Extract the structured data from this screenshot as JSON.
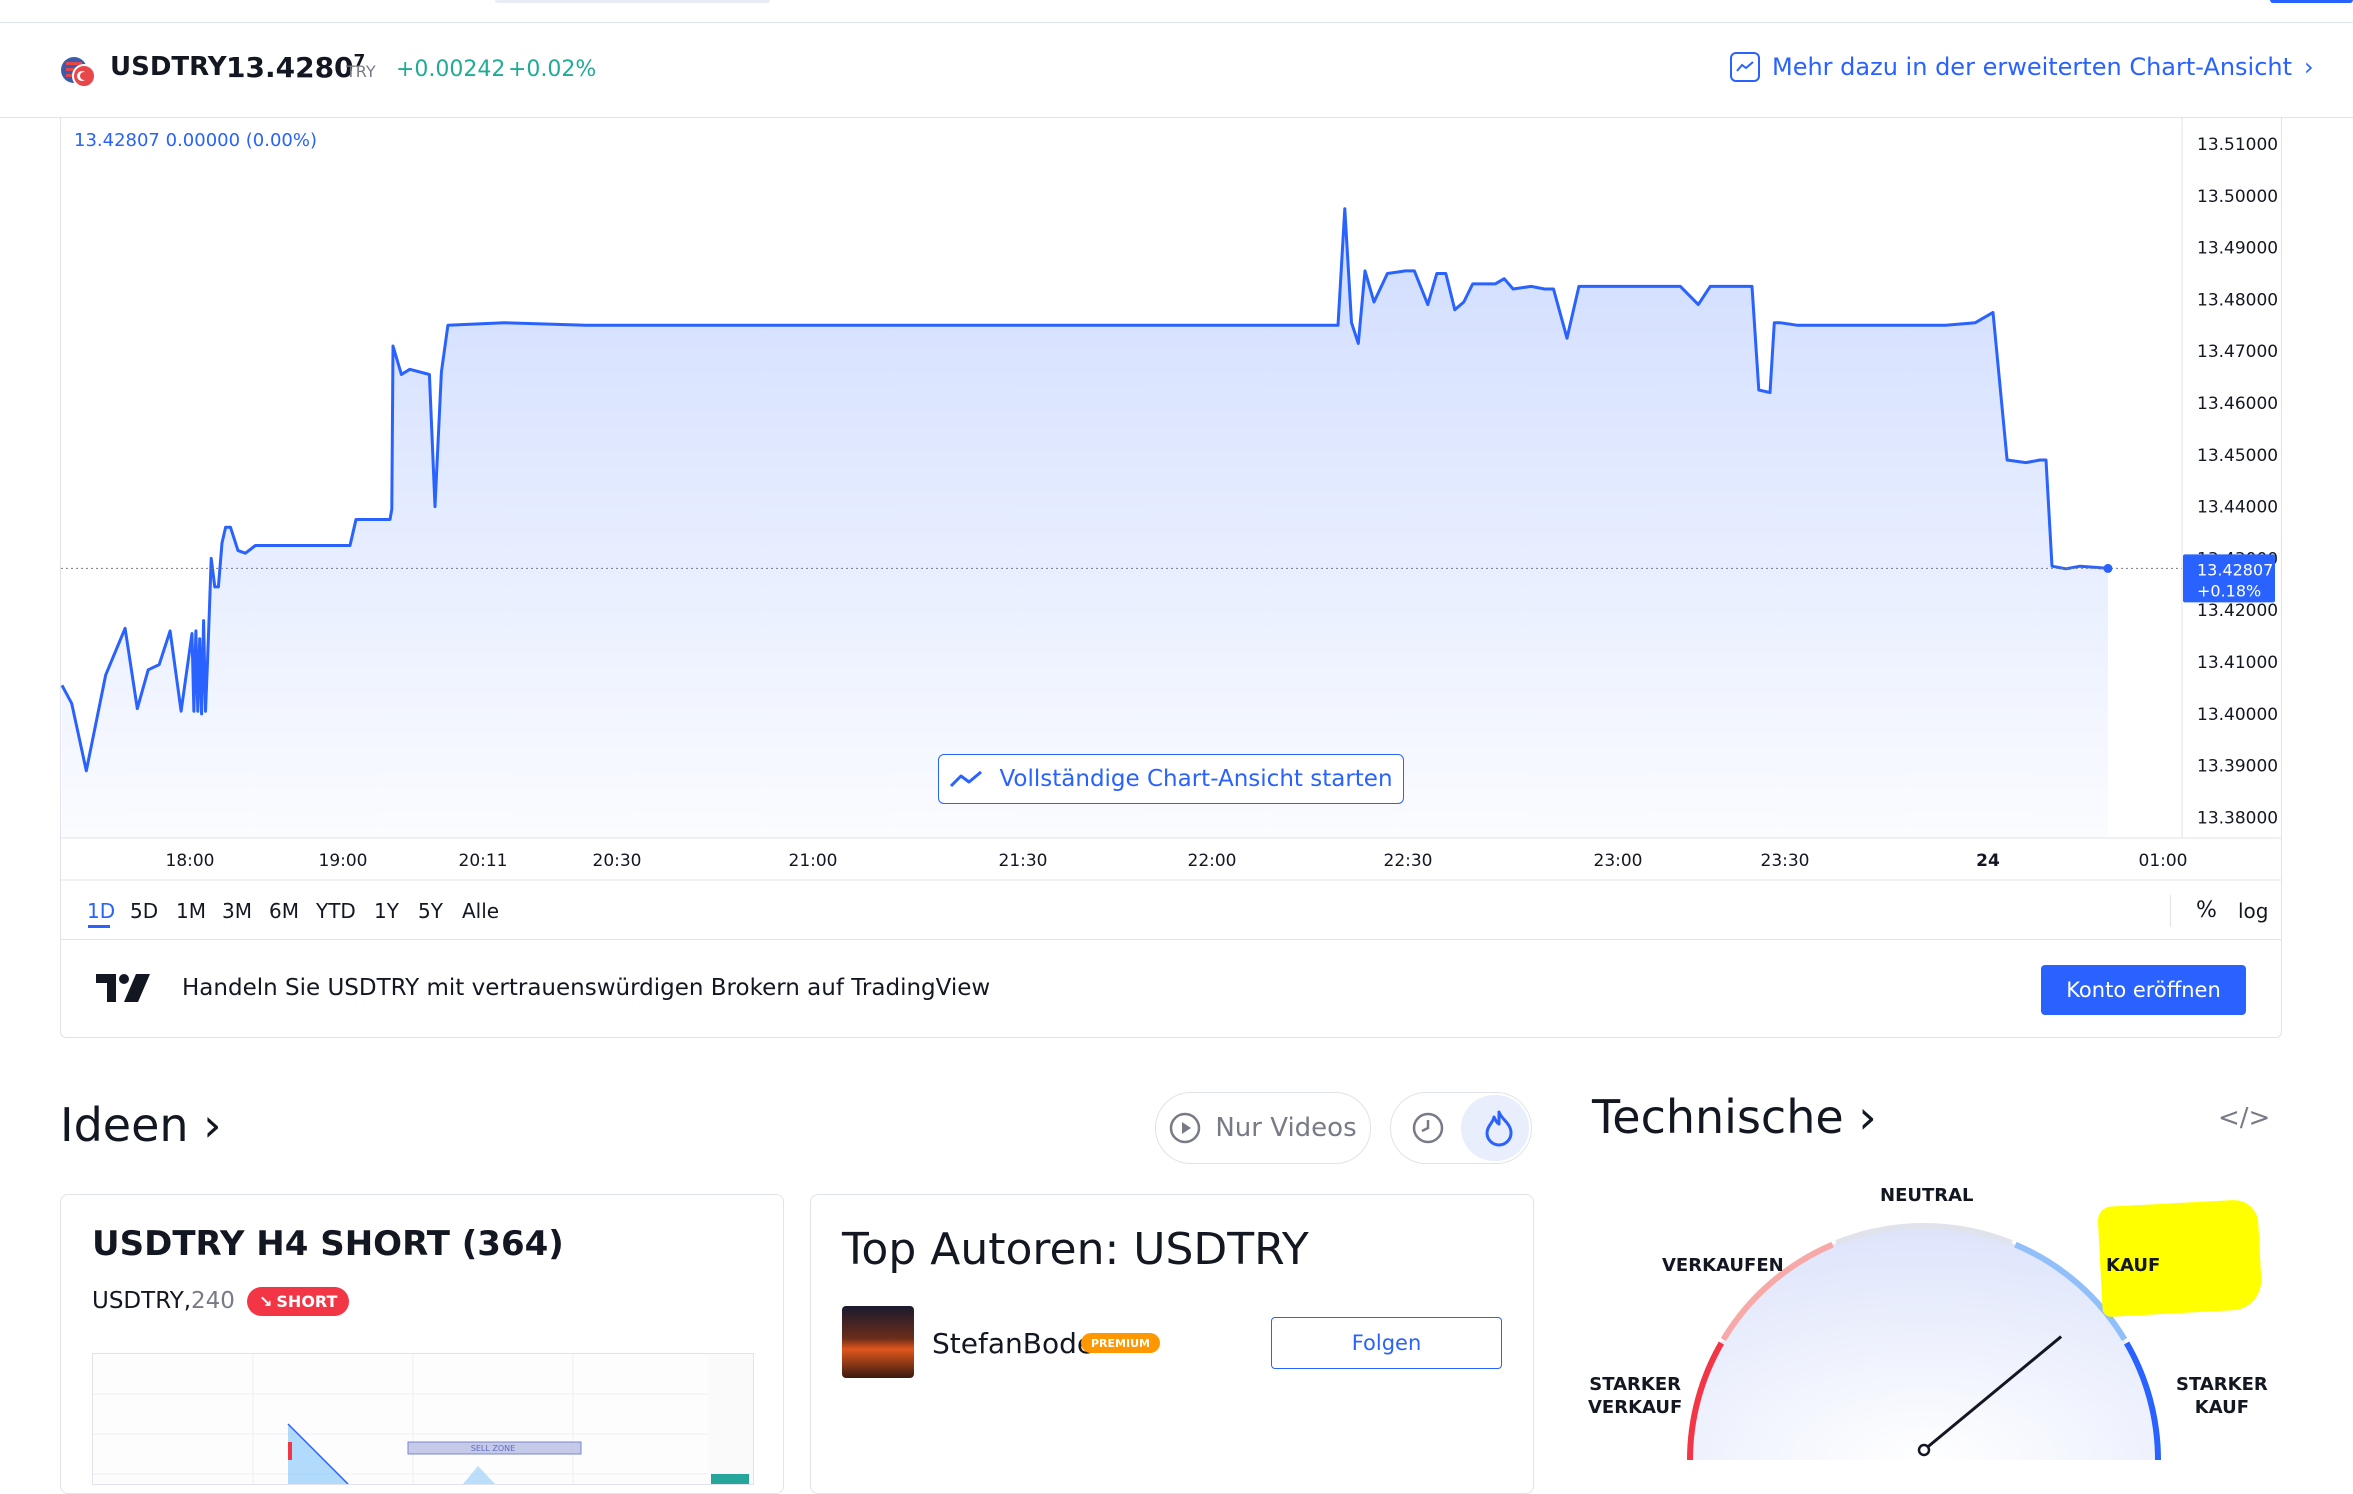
{
  "header": {
    "symbol": "USDTRY",
    "price_main": "13.4280",
    "price_sup": "7",
    "currency": "TRY",
    "change": "+0.00242",
    "change_percent": "+0.02%",
    "more_link": "Mehr dazu in der erweiterten Chart-Ansicht"
  },
  "chart": {
    "legend_value": "13.42807",
    "legend_change": "0.00000 (0.00%)",
    "last_price_label": "13.42807",
    "last_change_label": "+0.18%",
    "full_chart_button": "Vollständige Chart-Ansicht starten",
    "colors": {
      "line": "#2962ff",
      "accent": "#2962ff",
      "positive": "#22ab94"
    }
  },
  "chart_data": {
    "type": "area",
    "ylim": [
      13.375,
      13.515
    ],
    "y_ticks": [
      "13.51000",
      "13.50000",
      "13.49000",
      "13.48000",
      "13.47000",
      "13.46000",
      "13.45000",
      "13.44000",
      "13.43000",
      "13.42000",
      "13.41000",
      "13.40000",
      "13.39000",
      "13.38000"
    ],
    "x_ticks": [
      "18:00",
      "19:00",
      "20:11",
      "20:30",
      "21:00",
      "21:30",
      "22:00",
      "22:30",
      "23:00",
      "23:30",
      "24",
      "01:00"
    ],
    "points": [
      [
        "17:31",
        13.4055
      ],
      [
        "17:33",
        13.402
      ],
      [
        "17:36",
        13.389
      ],
      [
        "17:40",
        13.4075
      ],
      [
        "17:44",
        13.4165
      ],
      [
        "17:47",
        13.401
      ],
      [
        "17:50",
        13.4085
      ],
      [
        "17:53",
        13.4095
      ],
      [
        "17:56",
        13.416
      ],
      [
        "17:59",
        13.4005
      ],
      [
        "18:02",
        13.4155
      ],
      [
        "18:05",
        13.4005
      ],
      [
        "18:08",
        13.416
      ],
      [
        "18:11",
        13.4005
      ],
      [
        "18:14",
        13.4145
      ],
      [
        "18:17",
        13.4
      ],
      [
        "18:20",
        13.418
      ],
      [
        "18:23",
        13.4005
      ],
      [
        "18:26",
        13.4095
      ],
      [
        "18:29",
        13.42
      ],
      [
        "18:31",
        13.43
      ],
      [
        "18:34",
        13.4245
      ],
      [
        "18:37",
        13.4245
      ],
      [
        "18:40",
        13.433
      ],
      [
        "18:43",
        13.436
      ],
      [
        "18:46",
        13.436
      ],
      [
        "18:49",
        13.4315
      ],
      [
        "18:52",
        13.431
      ],
      [
        "18:56",
        13.4325
      ],
      [
        "19:10",
        13.4325
      ],
      [
        "19:20",
        13.4325
      ],
      [
        "19:30",
        13.4325
      ],
      [
        "19:35",
        13.4325
      ],
      [
        "19:38",
        13.4375
      ],
      [
        "19:46",
        13.4375
      ],
      [
        "19:55",
        13.4375
      ],
      [
        "19:58",
        13.4395
      ],
      [
        "20:00",
        13.471
      ],
      [
        "20:03",
        13.4655
      ],
      [
        "20:06",
        13.4665
      ],
      [
        "20:13",
        13.4655
      ],
      [
        "20:15",
        13.44
      ],
      [
        "20:18",
        13.466
      ],
      [
        "20:21",
        13.475
      ],
      [
        "20:30",
        13.4755
      ],
      [
        "20:42",
        13.475
      ],
      [
        "21:00",
        13.475
      ],
      [
        "21:30",
        13.475
      ],
      [
        "22:00",
        13.475
      ],
      [
        "22:25",
        13.475
      ],
      [
        "22:33",
        13.475
      ],
      [
        "22:35",
        13.4975
      ],
      [
        "22:37",
        13.4755
      ],
      [
        "22:39",
        13.4715
      ],
      [
        "22:41",
        13.4855
      ],
      [
        "22:43",
        13.4795
      ],
      [
        "22:46",
        13.485
      ],
      [
        "22:50",
        13.4855
      ],
      [
        "22:52",
        13.4855
      ],
      [
        "22:55",
        13.479
      ],
      [
        "22:57",
        13.485
      ],
      [
        "22:59",
        13.485
      ],
      [
        "23:01",
        13.478
      ],
      [
        "23:03",
        13.4795
      ],
      [
        "23:05",
        13.483
      ],
      [
        "23:10",
        13.483
      ],
      [
        "23:12",
        13.484
      ],
      [
        "23:14",
        13.482
      ],
      [
        "23:18",
        13.4825
      ],
      [
        "23:21",
        13.482
      ],
      [
        "23:23",
        13.482
      ],
      [
        "23:26",
        13.4725
      ],
      [
        "23:28",
        13.4825
      ],
      [
        "23:31",
        13.4825
      ],
      [
        "23:40",
        13.4825
      ],
      [
        "23:45",
        13.4825
      ],
      [
        "23:48",
        13.479
      ],
      [
        "23:50",
        13.4825
      ],
      [
        "23:55",
        13.4825
      ],
      [
        "23:57",
        13.4825
      ],
      [
        "24:00",
        13.4625
      ],
      [
        "24:05",
        13.462
      ],
      [
        "24:08",
        13.4755
      ],
      [
        "24:12",
        13.4755
      ],
      [
        "24:15",
        13.475
      ],
      [
        "24:20",
        13.475
      ],
      [
        "24:40",
        13.475
      ],
      [
        "24:45",
        13.4755
      ],
      [
        "24:48",
        13.4775
      ],
      [
        "24:51",
        13.449
      ],
      [
        "24:55",
        13.4485
      ],
      [
        "24:58",
        13.449
      ],
      [
        "25:02",
        13.449
      ],
      [
        "25:06",
        13.4285
      ],
      [
        "25:10",
        13.428
      ],
      [
        "25:14",
        13.4285
      ],
      [
        "25:18",
        13.4283
      ],
      [
        "25:22",
        13.42807
      ]
    ]
  },
  "timeframes": [
    "1D",
    "5D",
    "1M",
    "3M",
    "6M",
    "YTD",
    "1Y",
    "5Y",
    "Alle"
  ],
  "scale_options": {
    "percent": "%",
    "log": "log"
  },
  "broker": {
    "text": "Handeln Sie USDTRY mit vertrauenswürdigen Brokern auf TradingView",
    "button": "Konto eröffnen"
  },
  "ideas": {
    "title": "Ideen ›",
    "only_videos": "Nur Videos",
    "card1": {
      "title": "USDTRY H4 SHORT (364)",
      "symbol": "USDTRY,",
      "timeframe": "240",
      "badge": "SHORT",
      "thumb_label": "SELL ZONE"
    },
    "card2": {
      "title": "Top Autoren: USDTRY",
      "author": "StefanBode",
      "badge": "PREMIUM",
      "follow": "Folgen"
    }
  },
  "technicals": {
    "title": "Technische ›",
    "labels": {
      "neutral": "NEUTRAL",
      "sell": "VERKAUFEN",
      "buy": "KAUF",
      "strong_sell_1": "STARKER",
      "strong_sell_2": "VERKAUF",
      "strong_buy_1": "STARKER",
      "strong_buy_2": "KAUF"
    },
    "highlight_color": "#ffff00",
    "needle_value": 0.78
  }
}
